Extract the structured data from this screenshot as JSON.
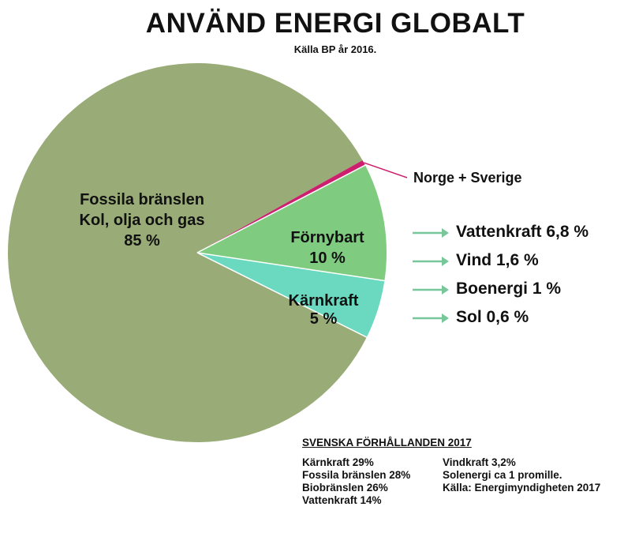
{
  "title": "ANVÄND ENERGI GLOBALT",
  "subtitle": "Källa BP år 2016.",
  "colors": {
    "fossil": "#99ac77",
    "renewable": "#7fcc80",
    "nuclear": "#6bd9bf",
    "norge_sverige": "#cc1f6e",
    "arrow": "#77c79a"
  },
  "chart_data": {
    "type": "pie",
    "slices": [
      {
        "name": "Fossila bränslen Kol, olja och gas",
        "value": 85
      },
      {
        "name": "Förnybart",
        "value": 10
      },
      {
        "name": "Kärnkraft",
        "value": 5
      },
      {
        "name": "Norge + Sverige",
        "value": 0.3
      }
    ],
    "labels": {
      "fossil_line1": "Fossila bränslen",
      "fossil_line2": "Kol, olja och gas",
      "fossil_pct": "85 %",
      "renewable_name": "Förnybart",
      "renewable_pct": "10 %",
      "nuclear_name": "Kärnkraft",
      "nuclear_pct": "5 %",
      "norge_sverige": "Norge + Sverige"
    },
    "renewable_breakdown": [
      {
        "label": "Vattenkraft 6,8 %",
        "name": "Vattenkraft",
        "value": 6.8
      },
      {
        "label": "Vind 1,6 %",
        "name": "Vind",
        "value": 1.6
      },
      {
        "label": "Boenergi 1 %",
        "name": "Boenergi",
        "value": 1
      },
      {
        "label": "Sol 0,6 %",
        "name": "Sol",
        "value": 0.6
      }
    ]
  },
  "swedish": {
    "title": "SVENSKA FÖRHÅLLANDEN 2017",
    "left": [
      "Kärnkraft 29%",
      "Fossila bränslen 28%",
      "Biobränslen 26%",
      "Vattenkraft 14%"
    ],
    "right": [
      "Vindkraft 3,2%",
      "Solenergi ca 1 promille.",
      "Källa: Energimyndigheten 2017"
    ]
  }
}
